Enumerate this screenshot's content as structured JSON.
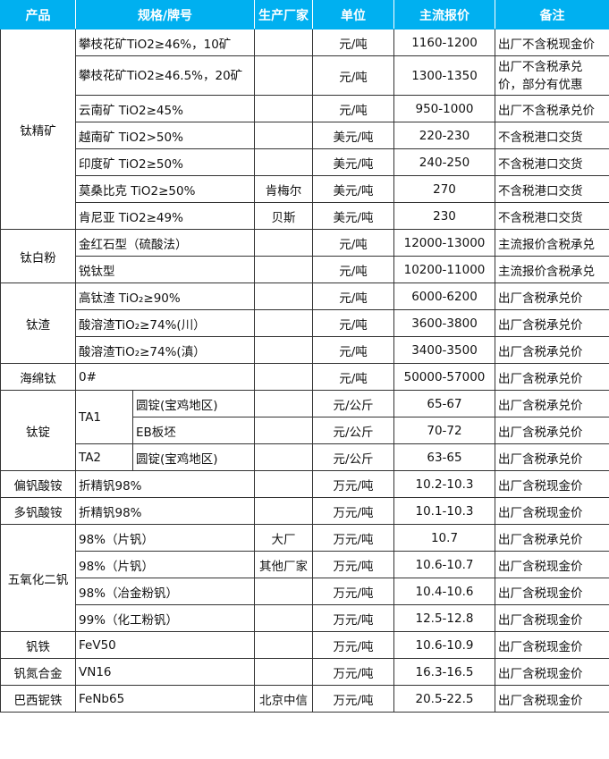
{
  "header": {
    "product": "产品",
    "spec": "规格/牌号",
    "maker": "生产厂家",
    "unit": "单位",
    "price": "主流报价",
    "note": "备注"
  },
  "groups": {
    "titanium_concentrate": {
      "name": "钛精矿",
      "rows": [
        {
          "spec": "攀枝花矿TiO2≥46%，10矿",
          "maker": "",
          "unit": "元/吨",
          "price": "1160-1200",
          "note": "出厂不含税现金价"
        },
        {
          "spec": "攀枝花矿TiO2≥46.5%，20矿",
          "maker": "",
          "unit": "元/吨",
          "price": "1300-1350",
          "note": "出厂不含税承兑价，部分有优惠"
        },
        {
          "spec": "云南矿 TiO2≥45%",
          "maker": "",
          "unit": "元/吨",
          "price": "950-1000",
          "note": "出厂不含税承兑价"
        },
        {
          "spec": "越南矿 TiO2>50%",
          "maker": "",
          "unit": "美元/吨",
          "price": "220-230",
          "note": "不含税港口交货"
        },
        {
          "spec": "印度矿 TiO2≥50%",
          "maker": "",
          "unit": "美元/吨",
          "price": "240-250",
          "note": "不含税港口交货"
        },
        {
          "spec": "莫桑比克 TiO2≥50%",
          "maker": "肯梅尔",
          "unit": "美元/吨",
          "price": "270",
          "note": "不含税港口交货"
        },
        {
          "spec": "肯尼亚 TiO2≥49%",
          "maker": "贝斯",
          "unit": "美元/吨",
          "price": "230",
          "note": "不含税港口交货"
        }
      ]
    },
    "titanium_dioxide": {
      "name": "钛白粉",
      "rows": [
        {
          "spec": "金红石型（硫酸法）",
          "maker": "",
          "unit": "元/吨",
          "price": "12000-13000",
          "note": "主流报价含税承兑"
        },
        {
          "spec": "锐钛型",
          "maker": "",
          "unit": "元/吨",
          "price": "10200-11000",
          "note": "主流报价含税承兑"
        }
      ]
    },
    "titanium_slag": {
      "name": "钛渣",
      "rows": [
        {
          "spec": "高钛渣 TiO₂≥90%",
          "maker": "",
          "unit": "元/吨",
          "price": "6000-6200",
          "note": "出厂含税承兑价"
        },
        {
          "spec": "酸溶渣TiO₂≥74%(川）",
          "maker": "",
          "unit": "元/吨",
          "price": "3600-3800",
          "note": "出厂含税承兑价"
        },
        {
          "spec": "酸溶渣TiO₂≥74%(滇）",
          "maker": "",
          "unit": "元/吨",
          "price": "3400-3500",
          "note": "出厂含税承兑价"
        }
      ]
    },
    "sponge_titanium": {
      "name": "海绵钛",
      "rows": [
        {
          "spec": "0#",
          "maker": "",
          "unit": "元/吨",
          "price": "50000-57000",
          "note": "出厂含税承兑价"
        }
      ]
    },
    "titanium_ingot": {
      "name": "钛锭",
      "rows": [
        {
          "grade": "TA1",
          "spec": "圆锭(宝鸡地区)",
          "unit": "元/公斤",
          "price": "65-67",
          "note": "出厂含税承兑价"
        },
        {
          "grade": "",
          "spec": "EB板坯",
          "unit": "元/公斤",
          "price": "70-72",
          "note": "出厂含税承兑价"
        },
        {
          "grade": "TA2",
          "spec": "圆锭(宝鸡地区)",
          "unit": "元/公斤",
          "price": "63-65",
          "note": "出厂含税承兑价"
        }
      ]
    },
    "ammonium_metavanadate": {
      "name": "偏钒酸铵",
      "rows": [
        {
          "spec": "折精钒98%",
          "maker": "",
          "unit": "万元/吨",
          "price": "10.2-10.3",
          "note": "出厂含税现金价"
        }
      ]
    },
    "ammonium_polyvanadate": {
      "name": "多钒酸铵",
      "rows": [
        {
          "spec": "折精钒98%",
          "maker": "",
          "unit": "万元/吨",
          "price": "10.1-10.3",
          "note": "出厂含税现金价"
        }
      ]
    },
    "vanadium_pentoxide": {
      "name": "五氧化二钒",
      "rows": [
        {
          "spec": "98%（片钒）",
          "maker": "大厂",
          "unit": "万元/吨",
          "price": "10.7",
          "note": "出厂含税承兑价"
        },
        {
          "spec": "98%（片钒）",
          "maker": "其他厂家",
          "unit": "万元/吨",
          "price": "10.6-10.7",
          "note": "出厂含税现金价"
        },
        {
          "spec": "98%（冶金粉钒）",
          "maker": "",
          "unit": "万元/吨",
          "price": "10.4-10.6",
          "note": "出厂含税现金价"
        },
        {
          "spec": "99%（化工粉钒）",
          "maker": "",
          "unit": "万元/吨",
          "price": "12.5-12.8",
          "note": "出厂含税现金价"
        }
      ]
    },
    "ferrovanadium": {
      "name": "钒铁",
      "rows": [
        {
          "spec": "FeV50",
          "maker": "",
          "unit": "万元/吨",
          "price": "10.6-10.9",
          "note": "出厂含税现金价"
        }
      ]
    },
    "vanadium_nitrogen": {
      "name": "钒氮合金",
      "rows": [
        {
          "spec": "VN16",
          "maker": "",
          "unit": "万元/吨",
          "price": "16.3-16.5",
          "note": "出厂含税现金价"
        }
      ]
    },
    "ferroniobium": {
      "name": "巴西铌铁",
      "rows": [
        {
          "spec": "FeNb65",
          "maker": "北京中信",
          "unit": "万元/吨",
          "price": "20.5-22.5",
          "note": "出厂含税现金价"
        }
      ]
    }
  }
}
